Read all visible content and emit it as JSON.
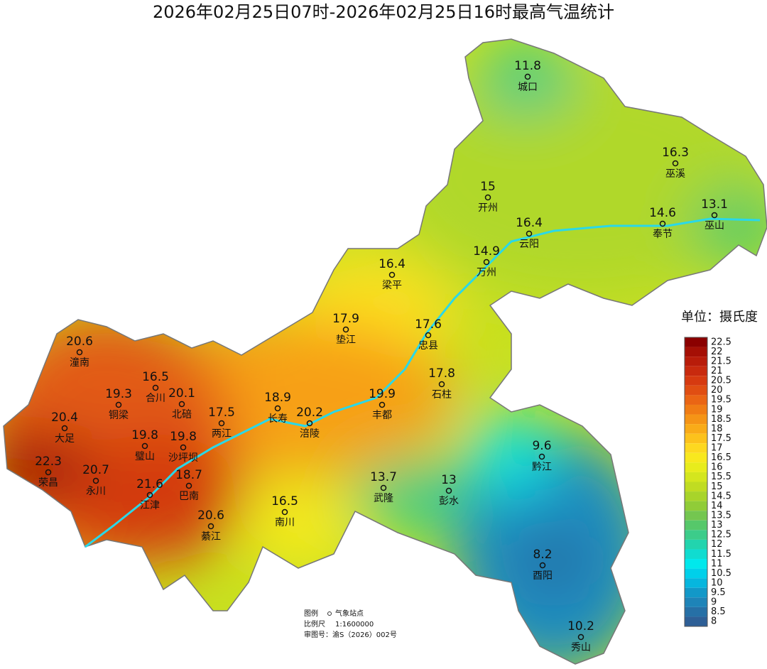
{
  "title": "2026年02月25日07时-2026年02月25日16时最高气温统计",
  "legend": {
    "title": "单位：摄氏度",
    "levels": [
      {
        "value": 22.5,
        "color": "#8b0000"
      },
      {
        "value": 22,
        "color": "#a50f05"
      },
      {
        "value": 21.5,
        "color": "#b81c0a"
      },
      {
        "value": 21,
        "color": "#c82a0e"
      },
      {
        "value": 20.5,
        "color": "#d63a10"
      },
      {
        "value": 20,
        "color": "#e04e12"
      },
      {
        "value": 19.5,
        "color": "#ea6514"
      },
      {
        "value": 19,
        "color": "#f07c14"
      },
      {
        "value": 18.5,
        "color": "#f59416"
      },
      {
        "value": 18,
        "color": "#f9ab18"
      },
      {
        "value": 17.5,
        "color": "#fcc21c"
      },
      {
        "value": 17,
        "color": "#fdd820"
      },
      {
        "value": 16.5,
        "color": "#f8e81e"
      },
      {
        "value": 16,
        "color": "#e8ec1c"
      },
      {
        "value": 15.5,
        "color": "#d4e61e"
      },
      {
        "value": 15,
        "color": "#c0dc22"
      },
      {
        "value": 14.5,
        "color": "#a8d42a"
      },
      {
        "value": 14,
        "color": "#90cc38"
      },
      {
        "value": 13.5,
        "color": "#74c650"
      },
      {
        "value": 13,
        "color": "#56c86a"
      },
      {
        "value": 12.5,
        "color": "#3ccc8a"
      },
      {
        "value": 12,
        "color": "#22d4ae"
      },
      {
        "value": 11.5,
        "color": "#10dcd0"
      },
      {
        "value": 11,
        "color": "#00e8ec"
      },
      {
        "value": 10.5,
        "color": "#00d0ea"
      },
      {
        "value": 10,
        "color": "#06b6de"
      },
      {
        "value": 9.5,
        "color": "#1298c8"
      },
      {
        "value": 9,
        "color": "#1e84b8"
      },
      {
        "value": 8.5,
        "color": "#2670a6"
      },
      {
        "value": 8,
        "color": "#2e5f96"
      }
    ]
  },
  "stations": [
    {
      "name": "城口",
      "value": 11.8
    },
    {
      "name": "巫溪",
      "value": 16.3
    },
    {
      "name": "开州",
      "value": 15
    },
    {
      "name": "巫山",
      "value": 13.1
    },
    {
      "name": "奉节",
      "value": 14.6
    },
    {
      "name": "云阳",
      "value": 16.4
    },
    {
      "name": "万州",
      "value": 14.9
    },
    {
      "name": "梁平",
      "value": 16.4
    },
    {
      "name": "垫江",
      "value": 17.9
    },
    {
      "name": "忠县",
      "value": 17.6
    },
    {
      "name": "潼南",
      "value": 20.6
    },
    {
      "name": "石柱",
      "value": 17.8
    },
    {
      "name": "合川",
      "value": 16.5
    },
    {
      "name": "北碚",
      "value": 20.1
    },
    {
      "name": "铜梁",
      "value": 19.3
    },
    {
      "name": "长寿",
      "value": 18.9
    },
    {
      "name": "丰都",
      "value": 19.9
    },
    {
      "name": "涪陵",
      "value": 20.2
    },
    {
      "name": "两江",
      "value": 17.5
    },
    {
      "name": "大足",
      "value": 20.4
    },
    {
      "name": "璧山",
      "value": 19.8
    },
    {
      "name": "沙坪坝",
      "value": 19.8
    },
    {
      "name": "黔江",
      "value": 9.6
    },
    {
      "name": "荣昌",
      "value": 22.3
    },
    {
      "name": "永川",
      "value": 20.7
    },
    {
      "name": "巴南",
      "value": 18.7
    },
    {
      "name": "武隆",
      "value": 13.7
    },
    {
      "name": "彭水",
      "value": 13
    },
    {
      "name": "江津",
      "value": 21.6
    },
    {
      "name": "南川",
      "value": 16.5
    },
    {
      "name": "綦江",
      "value": 20.6
    },
    {
      "name": "酉阳",
      "value": 8.2
    },
    {
      "name": "秀山",
      "value": 10.2
    }
  ],
  "notes": {
    "legend_label": "图例",
    "legend_item": "气象站点",
    "scale_label": "比例尺",
    "scale": "1:1600000",
    "review": "审图号：渝S（2026）002号"
  }
}
